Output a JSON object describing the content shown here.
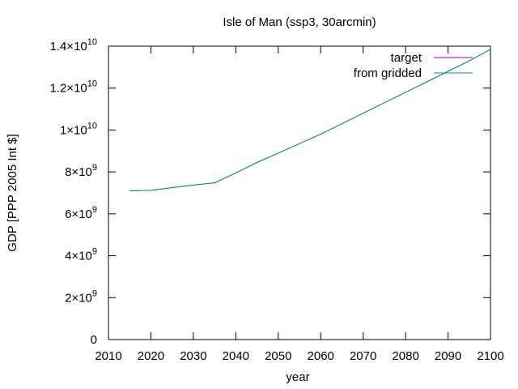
{
  "chart_data": {
    "type": "line",
    "title": "Isle of Man (ssp3, 30arcmin)",
    "xlabel": "year",
    "ylabel": "GDP [PPP 2005 Int $]",
    "xlim": [
      2010,
      2100
    ],
    "ylim": [
      0,
      14000000000
    ],
    "x_ticks": [
      "2010",
      "2020",
      "2030",
      "2040",
      "2050",
      "2060",
      "2070",
      "2080",
      "2090",
      "2100"
    ],
    "y_ticks": [
      {
        "value": 0,
        "mantissa": "0",
        "exp": ""
      },
      {
        "value": 2000000000,
        "mantissa": "2×10",
        "exp": "9"
      },
      {
        "value": 4000000000,
        "mantissa": "4×10",
        "exp": "9"
      },
      {
        "value": 6000000000,
        "mantissa": "6×10",
        "exp": "9"
      },
      {
        "value": 8000000000,
        "mantissa": "8×10",
        "exp": "9"
      },
      {
        "value": 10000000000,
        "mantissa": "1×10",
        "exp": "10"
      },
      {
        "value": 12000000000,
        "mantissa": "1.2×10",
        "exp": "10"
      },
      {
        "value": 14000000000,
        "mantissa": "1.4×10",
        "exp": "10"
      }
    ],
    "grid": false,
    "legend_position": "top-right",
    "series": [
      {
        "name": "target",
        "color": "#9400d3",
        "x": [
          2015,
          2020,
          2025,
          2030,
          2035,
          2040,
          2045,
          2050,
          2055,
          2060,
          2065,
          2070,
          2075,
          2080,
          2085,
          2090,
          2095,
          2100
        ],
        "y": [
          7100000000,
          7120000000,
          7250000000,
          7370000000,
          7480000000,
          7950000000,
          8450000000,
          8900000000,
          9350000000,
          9800000000,
          10300000000,
          10800000000,
          11300000000,
          11800000000,
          12300000000,
          12800000000,
          13300000000,
          13850000000
        ]
      },
      {
        "name": "from gridded",
        "color": "#009e73",
        "x": [
          2015,
          2020,
          2025,
          2030,
          2035,
          2040,
          2045,
          2050,
          2055,
          2060,
          2065,
          2070,
          2075,
          2080,
          2085,
          2090,
          2095,
          2100
        ],
        "y": [
          7100000000,
          7120000000,
          7250000000,
          7370000000,
          7480000000,
          7950000000,
          8450000000,
          8900000000,
          9350000000,
          9800000000,
          10300000000,
          10800000000,
          11300000000,
          11800000000,
          12300000000,
          12800000000,
          13300000000,
          13850000000
        ]
      }
    ]
  }
}
